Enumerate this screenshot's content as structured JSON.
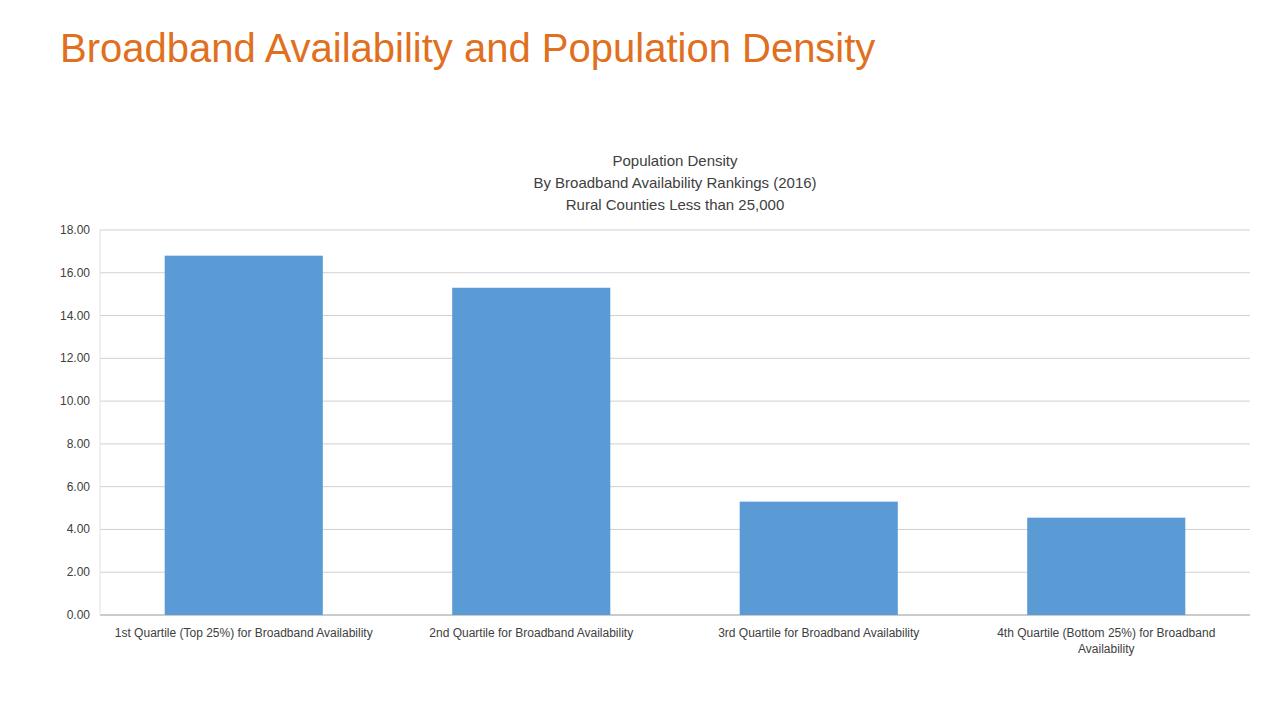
{
  "chart_data": {
    "type": "bar",
    "title": "Broadband Availability and Population Density",
    "subtitle": [
      "Population Density",
      "By Broadband Availability Rankings (2016)",
      "Rural Counties Less than 25,000"
    ],
    "categories": [
      "1st Quartile (Top 25%) for Broadband Availability",
      "2nd Quartile for Broadband Availability",
      "3rd Quartile for Broadband Availability",
      "4th Quartile (Bottom 25%) for Broadband Availability"
    ],
    "values": [
      16.8,
      15.3,
      5.3,
      4.55
    ],
    "color": "#5B9BD5",
    "ylim": [
      0,
      18
    ],
    "yticks": [
      {
        "value": 0.0,
        "label": "0.00"
      },
      {
        "value": 2.0,
        "label": "2.00"
      },
      {
        "value": 4.0,
        "label": "4.00"
      },
      {
        "value": 6.0,
        "label": "6.00"
      },
      {
        "value": 8.0,
        "label": "8.00"
      },
      {
        "value": 10.0,
        "label": "10.00"
      },
      {
        "value": 12.0,
        "label": "12.00"
      },
      {
        "value": 14.0,
        "label": "14.00"
      },
      {
        "value": 16.0,
        "label": "16.00"
      },
      {
        "value": 18.0,
        "label": "18.00"
      }
    ],
    "grid": true
  }
}
